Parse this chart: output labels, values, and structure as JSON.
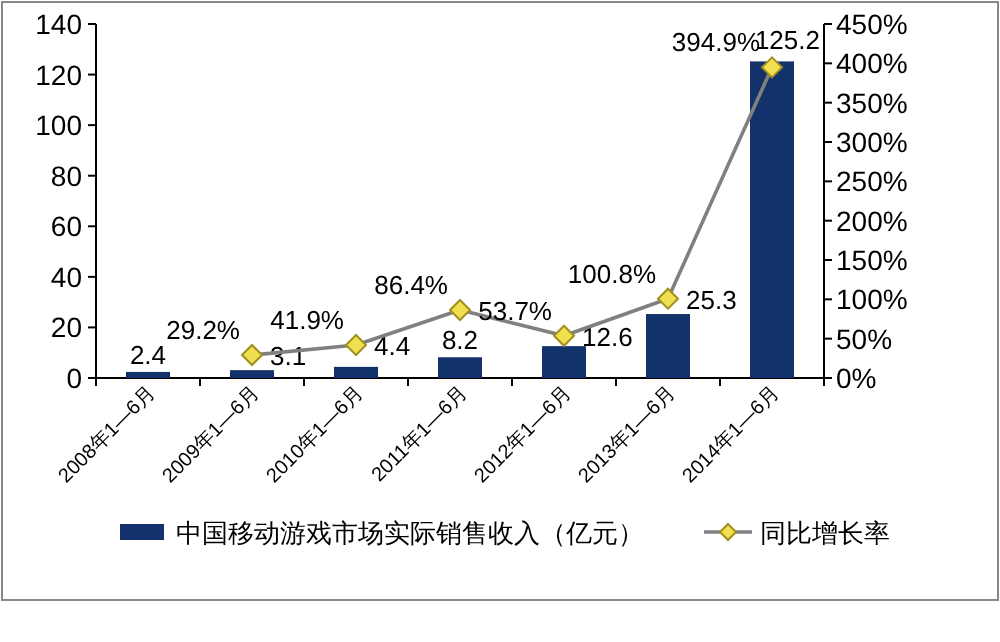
{
  "chart_data": {
    "type": "bar",
    "categories": [
      "2008年1—6月",
      "2009年1—6月",
      "2010年1—6月",
      "2011年1—6月",
      "2012年1—6月",
      "2013年1—6月",
      "2014年1—6月"
    ],
    "series": [
      {
        "name": "中国移动游戏市场实际销售收入（亿元）",
        "color": "#13316b",
        "values": [
          2.4,
          3.1,
          4.4,
          8.2,
          12.6,
          25.3,
          125.2
        ],
        "value_labels": [
          "2.4",
          "3.1",
          "4.4",
          "8.2",
          "12.6",
          "25.3",
          "125.2"
        ]
      },
      {
        "name": "同比增长率",
        "type": "line",
        "axis": "y2",
        "color": "#808080",
        "marker": "diamond",
        "values": [
          null,
          29.2,
          41.9,
          86.4,
          53.7,
          100.8,
          394.9
        ],
        "value_labels": [
          null,
          "29.2%",
          "41.9%",
          "86.4%",
          "53.7%",
          "100.8%",
          "394.9%"
        ]
      }
    ],
    "ylim": [
      0,
      140
    ],
    "yticks": [
      0,
      20,
      40,
      60,
      80,
      100,
      120,
      140
    ],
    "y2lim": [
      0,
      450
    ],
    "y2ticks": [
      {
        "value": 0,
        "label": "0%"
      },
      {
        "value": 50,
        "label": "50%"
      },
      {
        "value": 100,
        "label": "100%"
      },
      {
        "value": 150,
        "label": "150%"
      },
      {
        "value": 200,
        "label": "200%"
      },
      {
        "value": 250,
        "label": "250%"
      },
      {
        "value": 300,
        "label": "300%"
      },
      {
        "value": 350,
        "label": "350%"
      },
      {
        "value": 400,
        "label": "400%"
      },
      {
        "value": 450,
        "label": "450%"
      }
    ],
    "legend": "bottom"
  }
}
